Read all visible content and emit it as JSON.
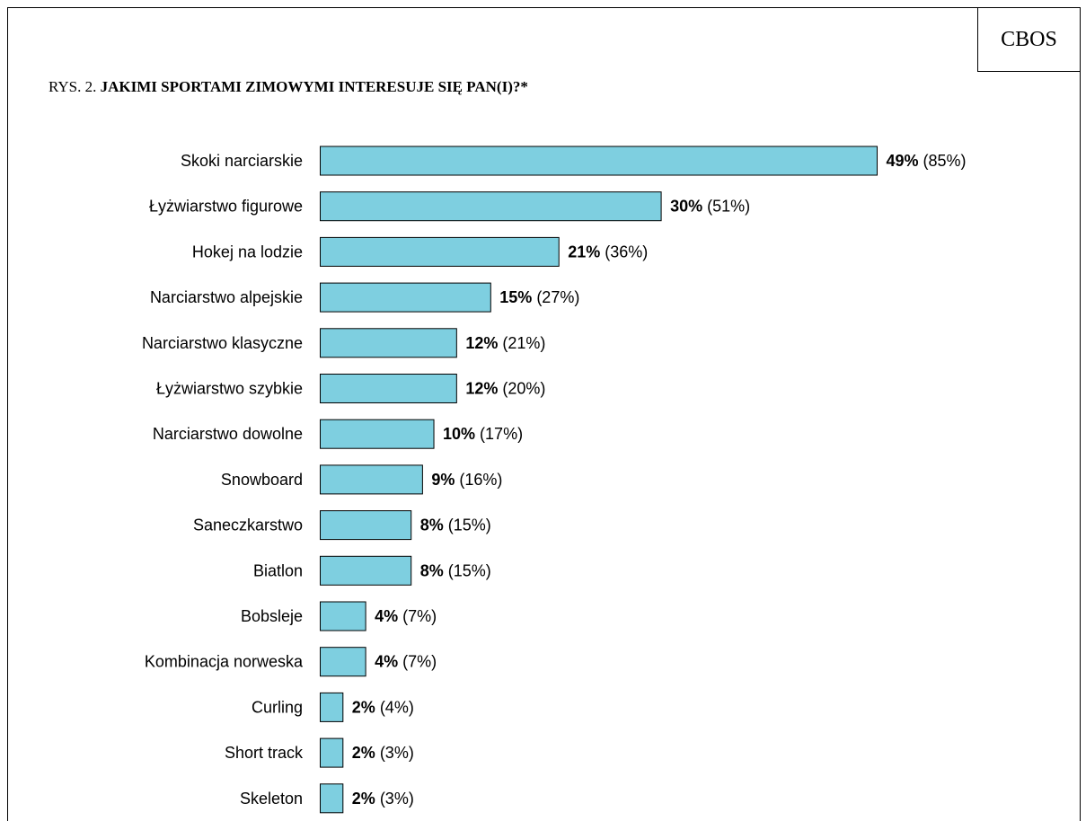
{
  "header": {
    "org_label": "CBOS",
    "caption_prefix": "RYS. 2. ",
    "caption_title": "JAKIMI SPORTAMI ZIMOWYMI INTERESUJE SIĘ PAN(I)?*"
  },
  "colors": {
    "bar_fill": "#7ecfe0",
    "bar_stroke": "#000000",
    "text": "#000000"
  },
  "chart_data": {
    "type": "bar",
    "orientation": "horizontal",
    "title": "JAKIMI SPORTAMI ZIMOWYMI INTERESUJE SIĘ PAN(I)?*",
    "categories": [
      "Skoki narciarskie",
      "Łyżwiarstwo figurowe",
      "Hokej na lodzie",
      "Narciarstwo alpejskie",
      "Narciarstwo klasyczne",
      "Łyżwiarstwo szybkie",
      "Narciarstwo dowolne",
      "Snowboard",
      "Saneczkarstwo",
      "Biatlon",
      "Bobsleje",
      "Kombinacja norweska",
      "Curling",
      "Short track",
      "Skeleton"
    ],
    "values": [
      49,
      30,
      21,
      15,
      12,
      12,
      10,
      9,
      8,
      8,
      4,
      4,
      2,
      2,
      2
    ],
    "value_labels": [
      "49%",
      "30%",
      "21%",
      "15%",
      "12%",
      "12%",
      "10%",
      "9%",
      "8%",
      "8%",
      "4%",
      "4%",
      "2%",
      "2%",
      "2%"
    ],
    "secondary_labels": [
      "(85%)",
      "(51%)",
      "(36%)",
      "(27%)",
      "(21%)",
      "(20%)",
      "(17%)",
      "(16%)",
      "(15%)",
      "(15%)",
      "(7%)",
      "(7%)",
      "(4%)",
      "(3%)",
      "(3%)"
    ],
    "xlim": [
      0,
      49
    ],
    "grid": false,
    "legend": "none"
  }
}
